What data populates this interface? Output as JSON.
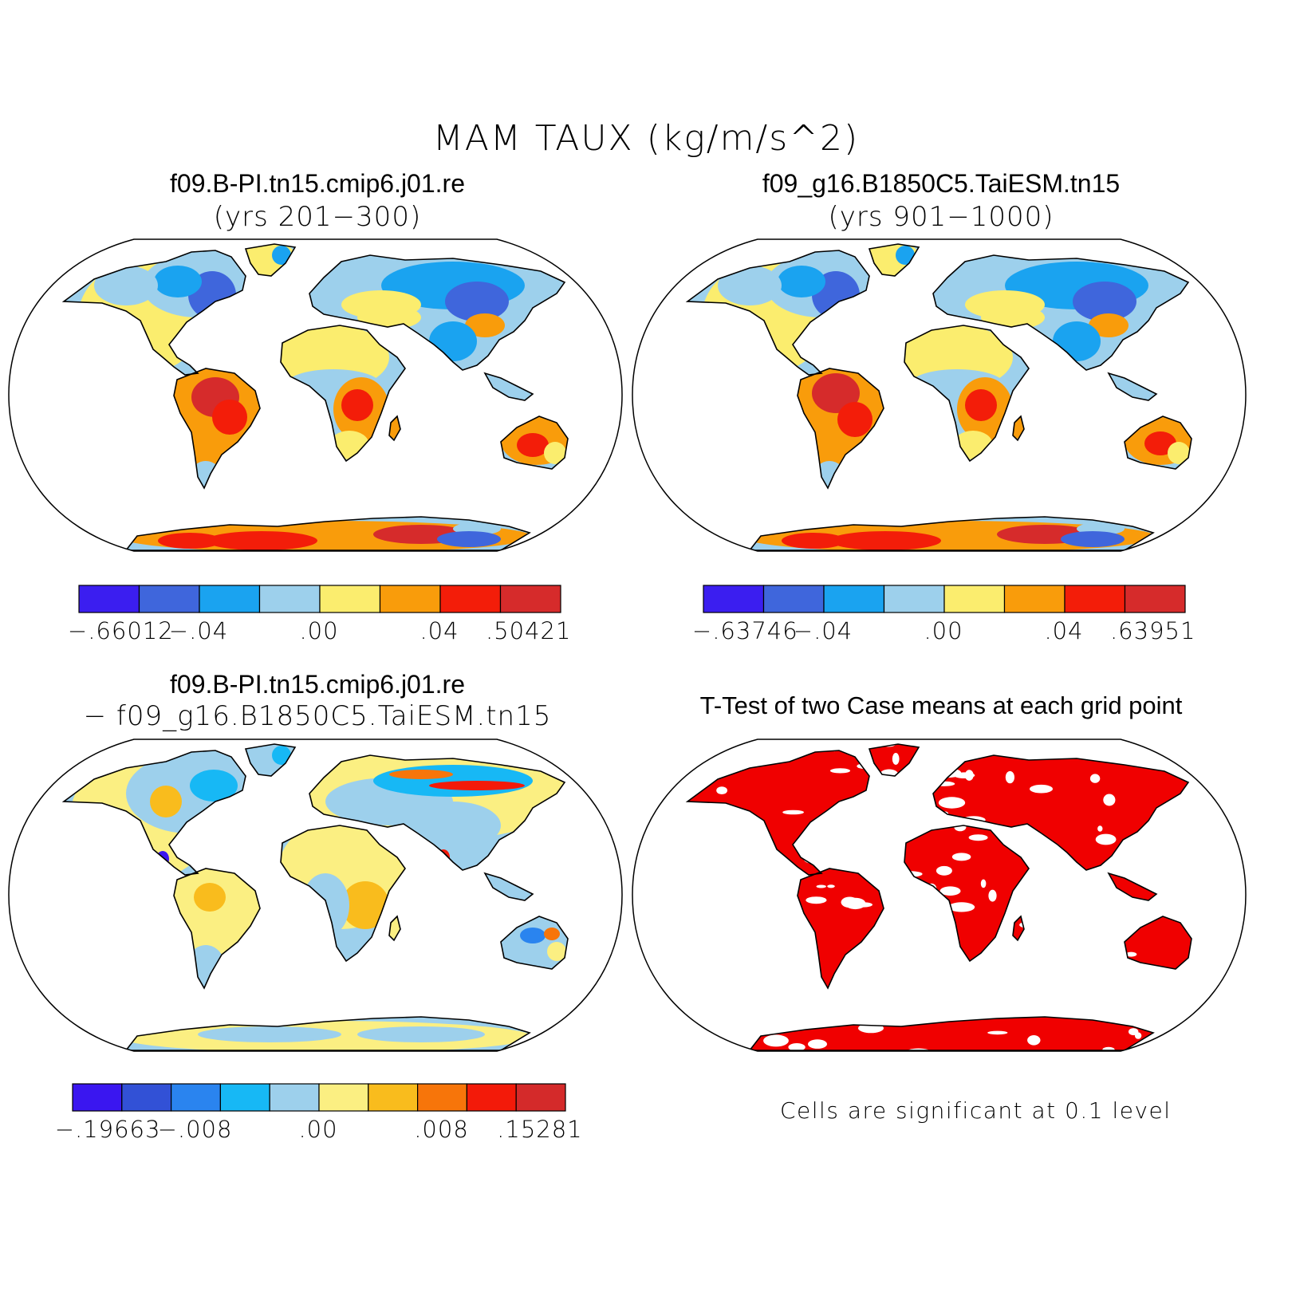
{
  "title": "MAM TAUX (kg/m/s^2)",
  "panels": [
    {
      "id": "case1",
      "title": "f09.B-PI.tn15.cmip6.j01.re",
      "subtitle": "(yrs 201−300)",
      "colorbar": {
        "colors": [
          "#3b1ef0",
          "#3f66dc",
          "#1aa3f0",
          "#9dd0ec",
          "#fbed6e",
          "#f99c0b",
          "#f31d09",
          "#d62b2b"
        ],
        "labels": [
          "−.66012",
          "−.04",
          ".00",
          ".04",
          ".50421"
        ]
      }
    },
    {
      "id": "case2",
      "title": "f09_g16.B1850C5.TaiESM.tn15",
      "subtitle": "(yrs 901−1000)",
      "colorbar": {
        "colors": [
          "#3b1ef0",
          "#3f66dc",
          "#1aa3f0",
          "#9dd0ec",
          "#fbed6e",
          "#f99c0b",
          "#f31d09",
          "#d62b2b"
        ],
        "labels": [
          "−.63746",
          "−.04",
          ".00",
          ".04",
          ".63951"
        ]
      }
    },
    {
      "id": "difference",
      "title": "f09.B-PI.tn15.cmip6.j01.re",
      "subtitle": "− f09_g16.B1850C5.TaiESM.tn15",
      "colorbar": {
        "colors": [
          "#3a16f0",
          "#3251d6",
          "#2a84ef",
          "#17b8f5",
          "#9dd0ec",
          "#fbef82",
          "#f9bc1d",
          "#f7750a",
          "#f31a09",
          "#d42a2a"
        ],
        "labels": [
          "−.19663",
          "−.008",
          ".00",
          ".008",
          ".15281"
        ]
      }
    },
    {
      "id": "ttest",
      "title": "T-Test of two Case means at each grid point",
      "note": "Cells are significant at 0.1 level",
      "significant_color": "#f00000"
    }
  ]
}
